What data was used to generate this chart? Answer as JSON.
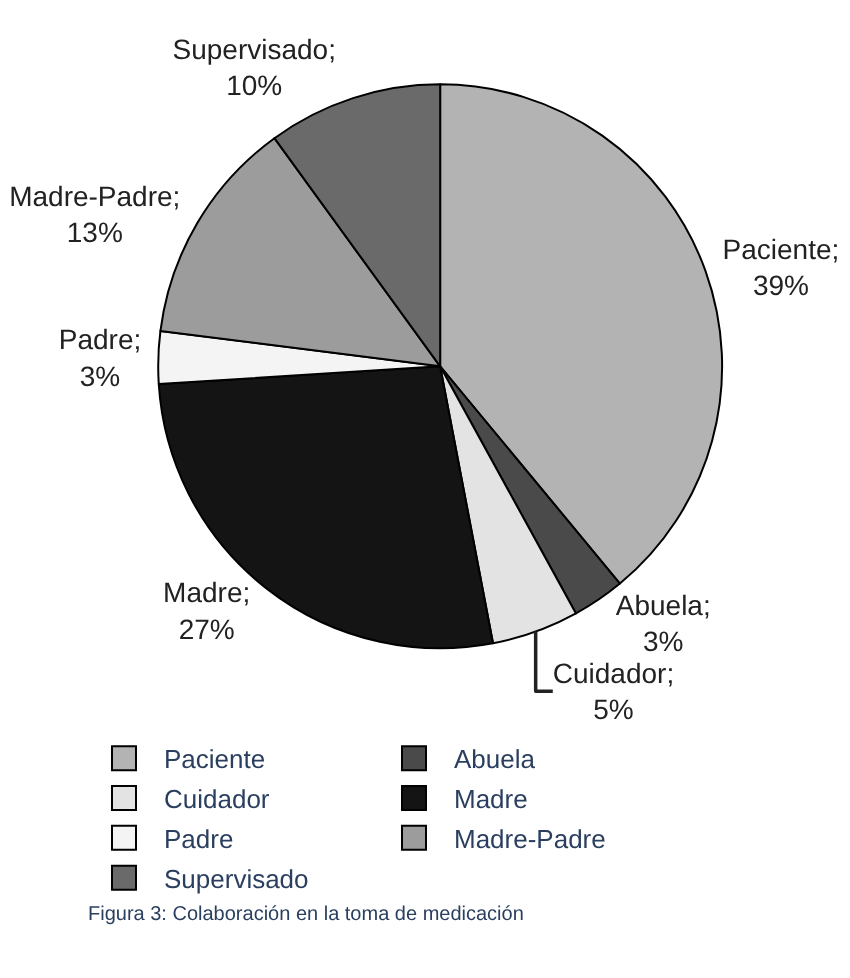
{
  "chart_data": {
    "type": "pie",
    "categories": [
      "Paciente",
      "Abuela",
      "Cuidador",
      "Madre",
      "Padre",
      "Madre-Padre",
      "Supervisado"
    ],
    "values": [
      39,
      3,
      5,
      27,
      3,
      13,
      10
    ],
    "colors": [
      "#b3b3b3",
      "#4a4a4a",
      "#e3e3e3",
      "#141414",
      "#f4f4f4",
      "#9c9c9c",
      "#6a6a6a"
    ],
    "value_labels": [
      "Paciente;\n39%",
      "Abuela;\n3%",
      "Cuidador;\n5%",
      "Madre;\n27%",
      "Padre;\n3%",
      "Madre-Padre;\n13%",
      "Supervisado;\n10%"
    ],
    "legend": "bottom",
    "annotations": [
      "Figura 3: Colaboración en la toma de medicación"
    ]
  }
}
